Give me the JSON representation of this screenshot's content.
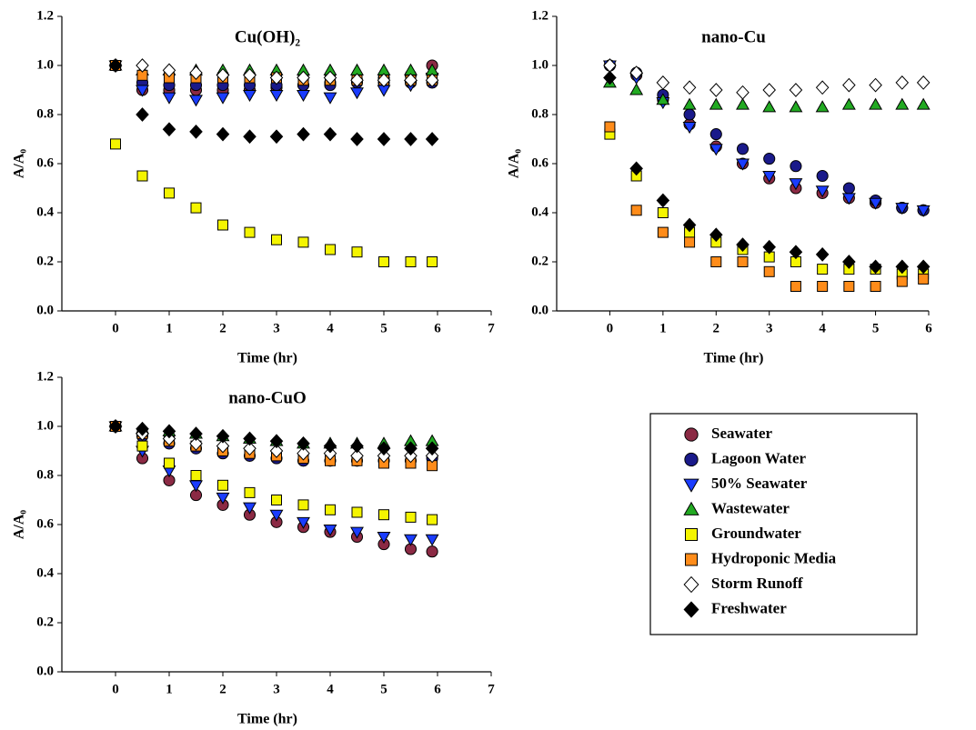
{
  "chart_data": [
    {
      "type": "scatter",
      "title": "Cu(OH)₂",
      "x_label": "Time (hr)",
      "y_label": "A/A₀",
      "x": [
        0,
        0.5,
        1,
        1.5,
        2,
        2.5,
        3,
        3.5,
        4,
        4.5,
        5,
        5.5,
        5.9
      ],
      "xlim": [
        -1,
        7
      ],
      "ylim": [
        0,
        1.2
      ],
      "xticks": [
        0,
        1,
        2,
        3,
        4,
        5,
        6,
        7
      ],
      "yticks": [
        {
          "value": 0,
          "label": "0.0"
        },
        {
          "value": 0.2,
          "label": "0.2"
        },
        {
          "value": 0.4,
          "label": "0.4"
        },
        {
          "value": 0.6,
          "label": "0.6"
        },
        {
          "value": 0.8,
          "label": "0.8"
        },
        {
          "value": 1.0,
          "label": "1.0"
        },
        {
          "value": 1.2,
          "label": "1.2"
        }
      ],
      "series": [
        {
          "name": "Seawater",
          "color": "#8b2a44",
          "marker": "circle",
          "values": [
            1.0,
            0.9,
            0.9,
            0.9,
            0.9,
            0.9,
            0.91,
            0.92,
            0.93,
            0.94,
            0.95,
            0.96,
            1.0
          ]
        },
        {
          "name": "Lagoon Water",
          "color": "#1a1a8a",
          "marker": "circle",
          "values": [
            1.0,
            0.93,
            0.92,
            0.92,
            0.92,
            0.92,
            0.92,
            0.92,
            0.92,
            0.93,
            0.93,
            0.93,
            0.93
          ]
        },
        {
          "name": "50% Seawater",
          "color": "#1a3cff",
          "marker": "triangle-down",
          "values": [
            1.0,
            0.9,
            0.87,
            0.86,
            0.87,
            0.88,
            0.88,
            0.88,
            0.87,
            0.89,
            0.9,
            0.92,
            0.95
          ]
        },
        {
          "name": "Wastewater",
          "color": "#22aa22",
          "marker": "triangle-up",
          "values": [
            1.0,
            0.98,
            0.98,
            0.98,
            0.98,
            0.98,
            0.98,
            0.98,
            0.98,
            0.98,
            0.98,
            0.98,
            0.98
          ]
        },
        {
          "name": "Groundwater",
          "color": "#f5f500",
          "marker": "square",
          "values": [
            0.68,
            0.55,
            0.48,
            0.42,
            0.35,
            0.32,
            0.29,
            0.28,
            0.25,
            0.24,
            0.2,
            0.2,
            0.2
          ]
        },
        {
          "name": "Hydroponic Media",
          "color": "#ff8c1a",
          "marker": "square",
          "values": [
            1.0,
            0.96,
            0.95,
            0.95,
            0.95,
            0.95,
            0.95,
            0.94,
            0.94,
            0.94,
            0.94,
            0.94,
            0.94
          ]
        },
        {
          "name": "Storm Runoff",
          "color": "#ffffff",
          "marker": "diamond",
          "values": [
            1.0,
            1.0,
            0.98,
            0.97,
            0.96,
            0.96,
            0.95,
            0.95,
            0.95,
            0.94,
            0.94,
            0.94,
            0.94
          ]
        },
        {
          "name": "Freshwater",
          "color": "#000000",
          "marker": "diamond",
          "values": [
            1.0,
            0.8,
            0.74,
            0.73,
            0.72,
            0.71,
            0.71,
            0.72,
            0.72,
            0.7,
            0.7,
            0.7,
            0.7
          ]
        }
      ]
    },
    {
      "type": "scatter",
      "title": "nano-Cu",
      "x_label": "Time (hr)",
      "y_label": "A/A₀",
      "x": [
        0,
        0.5,
        1,
        1.5,
        2,
        2.5,
        3,
        3.5,
        4,
        4.5,
        5,
        5.5,
        5.9
      ],
      "xlim": [
        -1,
        6
      ],
      "ylim": [
        0,
        1.2
      ],
      "xticks": [
        0,
        1,
        2,
        3,
        4,
        5,
        6
      ],
      "yticks": [
        {
          "value": 0,
          "label": "0.0"
        },
        {
          "value": 0.2,
          "label": "0.2"
        },
        {
          "value": 0.4,
          "label": "0.4"
        },
        {
          "value": 0.6,
          "label": "0.6"
        },
        {
          "value": 0.8,
          "label": "0.8"
        },
        {
          "value": 1.0,
          "label": "1.0"
        },
        {
          "value": 1.2,
          "label": "1.2"
        }
      ],
      "series": [
        {
          "name": "Seawater",
          "color": "#8b2a44",
          "marker": "circle",
          "values": [
            1.0,
            0.96,
            0.86,
            0.76,
            0.67,
            0.6,
            0.54,
            0.5,
            0.48,
            0.46,
            0.44,
            0.42,
            0.41
          ]
        },
        {
          "name": "Lagoon Water",
          "color": "#1a1a8a",
          "marker": "circle",
          "values": [
            1.0,
            0.97,
            0.88,
            0.8,
            0.72,
            0.66,
            0.62,
            0.59,
            0.55,
            0.5,
            0.45,
            0.42,
            0.41
          ]
        },
        {
          "name": "50% Seawater",
          "color": "#1a3cff",
          "marker": "triangle-down",
          "values": [
            1.0,
            0.95,
            0.85,
            0.75,
            0.66,
            0.6,
            0.55,
            0.52,
            0.49,
            0.46,
            0.44,
            0.42,
            0.41
          ]
        },
        {
          "name": "Wastewater",
          "color": "#22aa22",
          "marker": "triangle-up",
          "values": [
            0.93,
            0.9,
            0.86,
            0.84,
            0.84,
            0.84,
            0.83,
            0.83,
            0.83,
            0.84,
            0.84,
            0.84,
            0.84
          ]
        },
        {
          "name": "Groundwater",
          "color": "#f5f500",
          "marker": "square",
          "values": [
            0.72,
            0.55,
            0.4,
            0.32,
            0.28,
            0.25,
            0.22,
            0.2,
            0.17,
            0.17,
            0.17,
            0.15,
            0.15
          ]
        },
        {
          "name": "Hydroponic Media",
          "color": "#ff8c1a",
          "marker": "square",
          "values": [
            0.75,
            0.41,
            0.32,
            0.28,
            0.2,
            0.2,
            0.16,
            0.1,
            0.1,
            0.1,
            0.1,
            0.12,
            0.13
          ]
        },
        {
          "name": "Storm Runoff",
          "color": "#ffffff",
          "marker": "diamond",
          "values": [
            1.0,
            0.97,
            0.93,
            0.91,
            0.9,
            0.89,
            0.9,
            0.9,
            0.91,
            0.92,
            0.92,
            0.93,
            0.93
          ]
        },
        {
          "name": "Freshwater",
          "color": "#000000",
          "marker": "diamond",
          "values": [
            0.95,
            0.58,
            0.45,
            0.35,
            0.31,
            0.27,
            0.26,
            0.24,
            0.23,
            0.2,
            0.18,
            0.18,
            0.18
          ]
        }
      ]
    },
    {
      "type": "scatter",
      "title": "nano-CuO",
      "x_label": "Time (hr)",
      "y_label": "A/A₀",
      "x": [
        0,
        0.5,
        1,
        1.5,
        2,
        2.5,
        3,
        3.5,
        4,
        4.5,
        5,
        5.5,
        5.9
      ],
      "xlim": [
        -1,
        7
      ],
      "ylim": [
        0,
        1.2
      ],
      "xticks": [
        0,
        1,
        2,
        3,
        4,
        5,
        6,
        7
      ],
      "yticks": [
        {
          "value": 0,
          "label": "0.0"
        },
        {
          "value": 0.2,
          "label": "0.2"
        },
        {
          "value": 0.4,
          "label": "0.4"
        },
        {
          "value": 0.6,
          "label": "0.6"
        },
        {
          "value": 0.8,
          "label": "0.8"
        },
        {
          "value": 1.0,
          "label": "1.0"
        },
        {
          "value": 1.2,
          "label": "1.2"
        }
      ],
      "series": [
        {
          "name": "Seawater",
          "color": "#8b2a44",
          "marker": "circle",
          "values": [
            1.0,
            0.87,
            0.78,
            0.72,
            0.68,
            0.64,
            0.61,
            0.59,
            0.57,
            0.55,
            0.52,
            0.5,
            0.49
          ]
        },
        {
          "name": "Lagoon Water",
          "color": "#1a1a8a",
          "marker": "circle",
          "values": [
            1.0,
            0.96,
            0.93,
            0.91,
            0.89,
            0.88,
            0.87,
            0.86,
            0.86,
            0.86,
            0.86,
            0.86,
            0.87
          ]
        },
        {
          "name": "50% Seawater",
          "color": "#1a3cff",
          "marker": "triangle-down",
          "values": [
            1.0,
            0.9,
            0.82,
            0.76,
            0.71,
            0.67,
            0.64,
            0.61,
            0.58,
            0.57,
            0.55,
            0.54,
            0.54
          ]
        },
        {
          "name": "Wastewater",
          "color": "#22aa22",
          "marker": "triangle-up",
          "values": [
            1.0,
            0.99,
            0.98,
            0.97,
            0.96,
            0.95,
            0.94,
            0.93,
            0.93,
            0.93,
            0.93,
            0.94,
            0.94
          ]
        },
        {
          "name": "Groundwater",
          "color": "#f5f500",
          "marker": "square",
          "values": [
            1.0,
            0.92,
            0.85,
            0.8,
            0.76,
            0.73,
            0.7,
            0.68,
            0.66,
            0.65,
            0.64,
            0.63,
            0.62
          ]
        },
        {
          "name": "Hydroponic Media",
          "color": "#ff8c1a",
          "marker": "square",
          "values": [
            1.0,
            0.97,
            0.94,
            0.92,
            0.9,
            0.89,
            0.88,
            0.87,
            0.86,
            0.86,
            0.85,
            0.85,
            0.84
          ]
        },
        {
          "name": "Storm Runoff",
          "color": "#ffffff",
          "marker": "diamond",
          "values": [
            1.0,
            0.97,
            0.95,
            0.93,
            0.92,
            0.91,
            0.9,
            0.89,
            0.89,
            0.88,
            0.88,
            0.88,
            0.88
          ]
        },
        {
          "name": "Freshwater",
          "color": "#000000",
          "marker": "diamond",
          "values": [
            1.0,
            0.99,
            0.98,
            0.97,
            0.96,
            0.95,
            0.94,
            0.93,
            0.92,
            0.92,
            0.91,
            0.91,
            0.91
          ]
        }
      ]
    }
  ]
}
